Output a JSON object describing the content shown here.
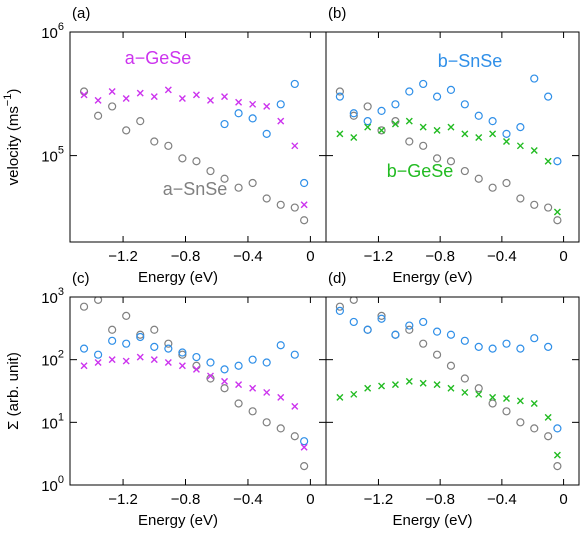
{
  "chart_data": [
    {
      "type": "scatter",
      "panel_label": "(a)",
      "xlabel": "Energy (eV)",
      "ylabel": [
        "velocity (ms",
        "−1",
        ")"
      ],
      "log_y": true,
      "show_ytick_labels": true,
      "xlim": [
        -1.54,
        0.1
      ],
      "ylim": [
        20000,
        1000000
      ],
      "xticks": [
        {
          "value": -1.2,
          "label": "−1.2"
        },
        {
          "value": -0.8,
          "label": "−0.8"
        },
        {
          "value": -0.4,
          "label": "−0.4"
        },
        0
      ],
      "yticks": [
        {
          "value": 100000,
          "label": "10",
          "exponent": "5"
        },
        {
          "value": 1000000,
          "label": "10",
          "exponent": "6"
        }
      ],
      "x": [
        -1.45,
        -1.36,
        -1.27,
        -1.18,
        -1.09,
        -1.0,
        -0.91,
        -0.82,
        -0.73,
        -0.64,
        -0.55,
        -0.46,
        -0.37,
        -0.28,
        -0.19,
        -0.1,
        -0.04
      ],
      "series": [
        {
          "name": "a−SnSe",
          "color": "#808080",
          "marker": "circle",
          "values": [
            330000,
            210000,
            250000,
            160000,
            190000,
            130000,
            120000,
            95000,
            90000,
            75000,
            65000,
            55000,
            60000,
            45000,
            40000,
            38000,
            30000
          ]
        },
        {
          "color": "#2f8fe8",
          "marker": "circle",
          "values": [
            null,
            null,
            null,
            null,
            null,
            null,
            null,
            null,
            null,
            null,
            180000,
            220000,
            200000,
            150000,
            260000,
            380000,
            60000
          ]
        },
        {
          "name": "a−GeSe",
          "color": "#cc33ee",
          "marker": "x",
          "values": [
            310000,
            280000,
            330000,
            290000,
            320000,
            300000,
            340000,
            290000,
            310000,
            280000,
            300000,
            270000,
            260000,
            250000,
            190000,
            120000,
            40000
          ]
        }
      ]
    },
    {
      "type": "scatter",
      "panel_label": "(b)",
      "xlabel": "Energy (eV)",
      "log_y": true,
      "show_ytick_labels": false,
      "xlim": [
        -1.54,
        0.1
      ],
      "ylim": [
        20000,
        1000000
      ],
      "xticks": [
        {
          "value": -1.2,
          "label": "−1.2"
        },
        {
          "value": -0.8,
          "label": "−0.8"
        },
        {
          "value": -0.4,
          "label": "−0.4"
        },
        0
      ],
      "yticks": [
        100000,
        1000000
      ],
      "x": [
        -1.45,
        -1.36,
        -1.27,
        -1.18,
        -1.09,
        -1.0,
        -0.91,
        -0.82,
        -0.73,
        -0.64,
        -0.55,
        -0.46,
        -0.37,
        -0.28,
        -0.19,
        -0.1,
        -0.04
      ],
      "series": [
        {
          "color": "#808080",
          "marker": "circle",
          "values": [
            330000,
            210000,
            250000,
            160000,
            190000,
            130000,
            120000,
            95000,
            90000,
            75000,
            65000,
            55000,
            60000,
            45000,
            40000,
            38000,
            30000
          ]
        },
        {
          "name": "b−SnSe",
          "color": "#2f8fe8",
          "marker": "circle",
          "values": [
            300000,
            220000,
            190000,
            230000,
            260000,
            330000,
            380000,
            300000,
            340000,
            260000,
            210000,
            190000,
            150000,
            170000,
            420000,
            300000,
            90000
          ]
        },
        {
          "name": "b−GeSe",
          "color": "#22bb22",
          "marker": "x",
          "values": [
            150000,
            140000,
            170000,
            160000,
            180000,
            190000,
            170000,
            160000,
            170000,
            150000,
            140000,
            150000,
            130000,
            120000,
            110000,
            90000,
            35000
          ]
        }
      ]
    },
    {
      "type": "scatter",
      "panel_label": "(c)",
      "xlabel": "Energy (eV)",
      "ylabel": [
        "Σ (arb. unit)"
      ],
      "log_y": true,
      "show_ytick_labels": true,
      "xlim": [
        -1.54,
        0.1
      ],
      "ylim": [
        1,
        1000
      ],
      "xticks": [
        {
          "value": -1.2,
          "label": "−1.2"
        },
        {
          "value": -0.8,
          "label": "−0.8"
        },
        {
          "value": -0.4,
          "label": "−0.4"
        },
        0
      ],
      "yticks": [
        {
          "value": 1,
          "label": "10",
          "exponent": "0"
        },
        {
          "value": 10,
          "label": "10",
          "exponent": "1"
        },
        {
          "value": 100,
          "label": "10",
          "exponent": "2"
        },
        {
          "value": 1000,
          "label": "10",
          "exponent": "3"
        }
      ],
      "x": [
        -1.45,
        -1.36,
        -1.27,
        -1.18,
        -1.09,
        -1.0,
        -0.91,
        -0.82,
        -0.73,
        -0.64,
        -0.55,
        -0.46,
        -0.37,
        -0.28,
        -0.19,
        -0.1,
        -0.04
      ],
      "series": [
        {
          "color": "#808080",
          "marker": "circle",
          "values": [
            700,
            900,
            300,
            500,
            250,
            300,
            180,
            120,
            80,
            50,
            35,
            20,
            15,
            10,
            8,
            6,
            2
          ]
        },
        {
          "color": "#2f8fe8",
          "marker": "circle",
          "values": [
            150,
            120,
            200,
            180,
            230,
            160,
            150,
            130,
            110,
            90,
            70,
            80,
            100,
            90,
            170,
            120,
            5
          ]
        },
        {
          "color": "#cc33ee",
          "marker": "x",
          "values": [
            80,
            90,
            100,
            95,
            110,
            100,
            90,
            80,
            70,
            55,
            45,
            40,
            35,
            30,
            25,
            18,
            4
          ]
        }
      ]
    },
    {
      "type": "scatter",
      "panel_label": "(d)",
      "xlabel": "Energy (eV)",
      "log_y": true,
      "show_ytick_labels": false,
      "xlim": [
        -1.54,
        0.1
      ],
      "ylim": [
        1,
        1000
      ],
      "xticks": [
        {
          "value": -1.2,
          "label": "−1.2"
        },
        {
          "value": -0.8,
          "label": "−0.8"
        },
        {
          "value": -0.4,
          "label": "−0.4"
        },
        0
      ],
      "yticks": [
        1,
        10,
        100,
        1000
      ],
      "x": [
        -1.45,
        -1.36,
        -1.27,
        -1.18,
        -1.09,
        -1.0,
        -0.91,
        -0.82,
        -0.73,
        -0.64,
        -0.55,
        -0.46,
        -0.37,
        -0.28,
        -0.19,
        -0.1,
        -0.04
      ],
      "series": [
        {
          "color": "#808080",
          "marker": "circle",
          "values": [
            700,
            900,
            300,
            500,
            250,
            300,
            180,
            120,
            80,
            50,
            35,
            20,
            15,
            10,
            8,
            6,
            2
          ]
        },
        {
          "color": "#2f8fe8",
          "marker": "circle",
          "values": [
            600,
            400,
            300,
            450,
            250,
            350,
            400,
            280,
            250,
            200,
            160,
            150,
            180,
            150,
            220,
            160,
            8
          ]
        },
        {
          "color": "#22bb22",
          "marker": "x",
          "values": [
            25,
            28,
            35,
            38,
            40,
            45,
            42,
            40,
            35,
            30,
            28,
            25,
            24,
            22,
            20,
            12,
            3
          ]
        }
      ]
    }
  ]
}
